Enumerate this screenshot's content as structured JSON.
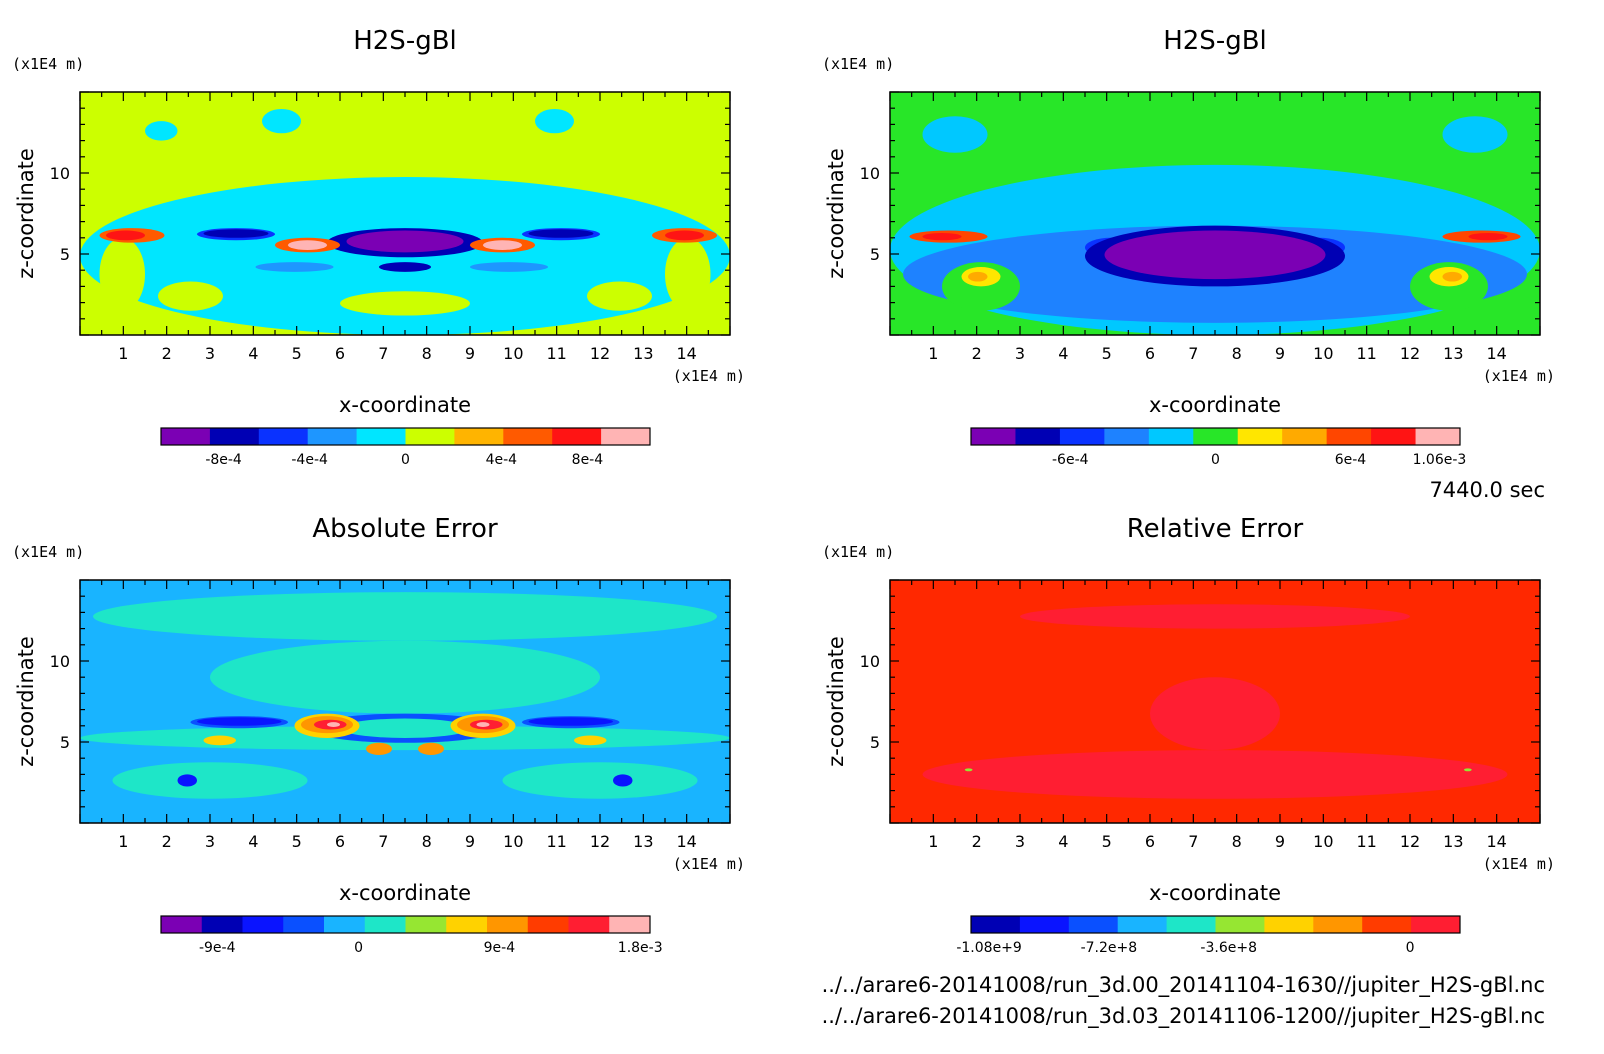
{
  "time_label": "7440.0 sec",
  "files": [
    "../../arare6-20141008/run_3d.00_20141104-1630//jupiter_H2S-gBl.nc",
    "../../arare6-20141008/run_3d.03_20141106-1200//jupiter_H2S-gBl.nc"
  ],
  "chart_data": [
    {
      "type": "heatmap",
      "title": "H2S-gBl",
      "xlabel": "x-coordinate",
      "ylabel": "z-coordinate",
      "x_unit": "(x1E4 m)",
      "y_unit": "(x1E4 m)",
      "xlim": [
        0,
        15
      ],
      "ylim": [
        0,
        15
      ],
      "xticks": [
        1,
        2,
        3,
        4,
        5,
        6,
        7,
        8,
        9,
        10,
        11,
        12,
        13,
        14
      ],
      "yticks": [
        5,
        10
      ],
      "background_color": "#ccff00",
      "colorbar": {
        "colors": [
          "#7b00b4",
          "#0000b4",
          "#0a32ff",
          "#1e96ff",
          "#00e6ff",
          "#ccff00",
          "#ffb400",
          "#ff5a00",
          "#ff1414",
          "#ffb4b4"
        ],
        "tick_labels": [
          "-8e-4",
          "-4e-4",
          "0",
          "4e-4",
          "8e-4"
        ]
      }
    },
    {
      "type": "heatmap",
      "title": "H2S-gBl",
      "xlabel": "x-coordinate",
      "ylabel": "z-coordinate",
      "x_unit": "(x1E4 m)",
      "y_unit": "(x1E4 m)",
      "xlim": [
        0,
        15
      ],
      "ylim": [
        0,
        15
      ],
      "xticks": [
        1,
        2,
        3,
        4,
        5,
        6,
        7,
        8,
        9,
        10,
        11,
        12,
        13,
        14
      ],
      "yticks": [
        5,
        10
      ],
      "background_color": "#28e628",
      "colorbar": {
        "colors": [
          "#7b00b4",
          "#0000b4",
          "#0a32ff",
          "#1e82ff",
          "#00c8ff",
          "#28e628",
          "#ffe600",
          "#ffaa00",
          "#ff4600",
          "#ff1414",
          "#ffb4b4"
        ],
        "tick_labels": [
          "-6e-4",
          "0",
          "6e-4",
          "1.06e-3"
        ]
      }
    },
    {
      "type": "heatmap",
      "title": "Absolute Error",
      "xlabel": "x-coordinate",
      "ylabel": "z-coordinate",
      "x_unit": "(x1E4 m)",
      "y_unit": "(x1E4 m)",
      "xlim": [
        0,
        15
      ],
      "ylim": [
        0,
        15
      ],
      "xticks": [
        1,
        2,
        3,
        4,
        5,
        6,
        7,
        8,
        9,
        10,
        11,
        12,
        13,
        14
      ],
      "yticks": [
        5,
        10
      ],
      "background_color": "#19b4ff",
      "colorbar": {
        "colors": [
          "#7b00b4",
          "#0000b4",
          "#0a14ff",
          "#0a50ff",
          "#19b4ff",
          "#1ee6c8",
          "#96e632",
          "#ffd200",
          "#ff9600",
          "#ff3c00",
          "#ff1e32",
          "#ffb4b4"
        ],
        "tick_labels": [
          "-9e-4",
          "0",
          "9e-4",
          "1.8e-3"
        ]
      }
    },
    {
      "type": "heatmap",
      "title": "Relative Error",
      "xlabel": "x-coordinate",
      "ylabel": "z-coordinate",
      "x_unit": "(x1E4 m)",
      "y_unit": "(x1E4 m)",
      "xlim": [
        0,
        15
      ],
      "ylim": [
        0,
        15
      ],
      "xticks": [
        1,
        2,
        3,
        4,
        5,
        6,
        7,
        8,
        9,
        10,
        11,
        12,
        13,
        14
      ],
      "yticks": [
        5,
        10
      ],
      "background_color": "#ff2800",
      "colorbar": {
        "colors": [
          "#0000b4",
          "#0a14ff",
          "#0a50ff",
          "#19b4ff",
          "#1ee6c8",
          "#96e632",
          "#ffd200",
          "#ff9600",
          "#ff3c00",
          "#ff1e32"
        ],
        "tick_labels": [
          "-1.08e+9",
          "-7.2e+8",
          "-3.6e+8",
          "0"
        ]
      }
    }
  ]
}
